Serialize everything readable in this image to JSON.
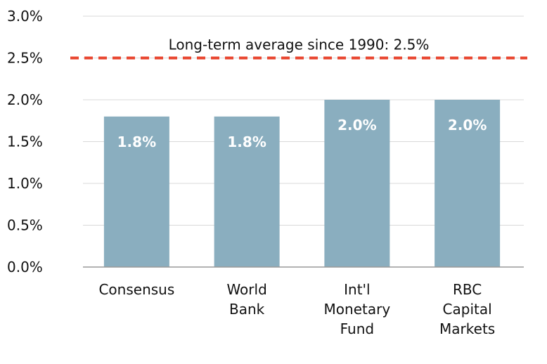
{
  "chart_data": {
    "type": "bar",
    "title": "",
    "xlabel": "",
    "ylabel": "",
    "categories": [
      "Consensus",
      "World Bank",
      "Int'l Monetary Fund",
      "RBC Capital Markets"
    ],
    "category_lines": [
      [
        "Consensus"
      ],
      [
        "World",
        "Bank"
      ],
      [
        "Int'l",
        "Monetary",
        "Fund"
      ],
      [
        "RBC",
        "Capital",
        "Markets"
      ]
    ],
    "values": [
      1.8,
      1.8,
      2.0,
      2.0
    ],
    "data_labels": [
      "1.8%",
      "1.8%",
      "2.0%",
      "2.0%"
    ],
    "ylim": [
      0,
      3.0
    ],
    "y_ticks": [
      0,
      0.5,
      1.0,
      1.5,
      2.0,
      2.5,
      3.0
    ],
    "y_tick_labels": [
      "0.0%",
      "0.5%",
      "1.0%",
      "1.5%",
      "2.0%",
      "2.5%",
      "3.0%"
    ],
    "grid": true,
    "reference_line": {
      "value": 2.5,
      "label": "Long-term average since 1990: 2.5%",
      "style": "dashed",
      "color": "#e8442e"
    },
    "colors": {
      "bar": "#8aaebf",
      "grid": "#d9d9d9",
      "axis": "#999999"
    }
  }
}
